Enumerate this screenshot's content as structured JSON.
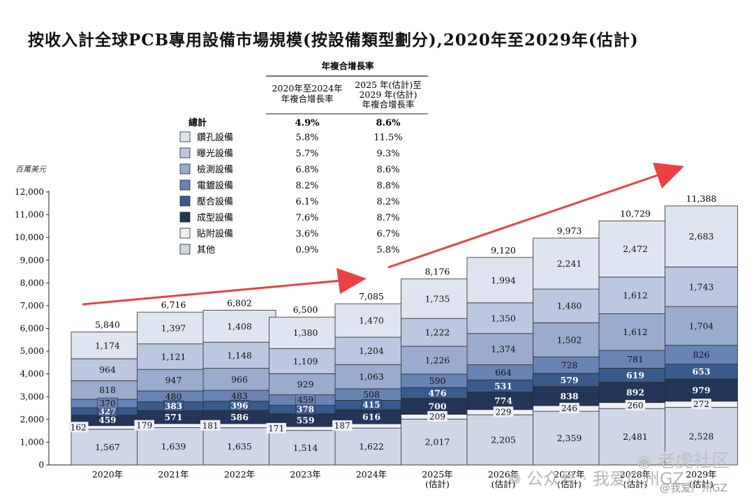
{
  "title": "按收入計全球PCB專用設備市場規模(按設備類型劃分),2020年至2029年(估計)",
  "cagr_table": {
    "group_header": "年複合增長率",
    "col1_header": "2020年至2024年年複合增長率",
    "col1_lines": [
      "2020年至2024年",
      "年複合增長率"
    ],
    "col2_header": "2025年(估計)至2029年(估計)年複合增長率",
    "col2_lines": [
      "2025 年(估計)至",
      "2029 年(估計)",
      "年複合增長率"
    ],
    "total": {
      "label": "總計",
      "cagr_2020_2024": "4.9%",
      "cagr_2025_2029": "8.6%"
    }
  },
  "watermark": {
    "text1": "公众号 · 我爱广州GZ",
    "text2": "老虎社区",
    "text3": "@我爱广州GZ"
  },
  "chart_data": {
    "type": "bar",
    "stacked": true,
    "ylabel": "百萬美元",
    "ylim": [
      0,
      12000
    ],
    "yticks": [
      "0",
      "1,000",
      "2,000",
      "3,000",
      "4,000",
      "5,000",
      "6,000",
      "7,000",
      "8,000",
      "9,000",
      "10,000",
      "11,000",
      "12,000"
    ],
    "categories": [
      "2020年",
      "2021年",
      "2022年",
      "2023年",
      "2024年",
      "2025年\n(估計)",
      "2026年\n(估計)",
      "2027年\n(估計)",
      "2028年\n(估計)",
      "2029年\n(估計)"
    ],
    "totals": [
      5840,
      6716,
      6802,
      6500,
      7085,
      8176,
      9120,
      9973,
      10729,
      11388
    ],
    "total_labels": [
      "5,840",
      "6,716",
      "6,802",
      "6,500",
      "7,085",
      "8,176",
      "9,120",
      "9,973",
      "10,729",
      "11,388"
    ],
    "series": [
      {
        "name": "其他",
        "color": "#cfd6e6",
        "cagr_2020_2024": "0.9%",
        "cagr_2025_2029": "5.8%",
        "values": [
          1567,
          1639,
          1635,
          1514,
          1622,
          2017,
          2205,
          2359,
          2481,
          2528
        ],
        "labels": [
          "1,567",
          "1,639",
          "1,635",
          "1,514",
          "1,622",
          "2,017",
          "2,205",
          "2,359",
          "2,481",
          "2,528"
        ]
      },
      {
        "name": "貼附設備",
        "color": "#eef1f7",
        "cagr_2020_2024": "3.6%",
        "cagr_2025_2029": "6.7%",
        "values": [
          162,
          179,
          181,
          171,
          187,
          209,
          229,
          246,
          260,
          272
        ],
        "labels": [
          "162",
          "179",
          "181",
          "171",
          "187",
          "209",
          "229",
          "246",
          "260",
          "272"
        ]
      },
      {
        "name": "成型設備",
        "color": "#233657",
        "cagr_2020_2024": "7.6%",
        "cagr_2025_2029": "8.7%",
        "values": [
          459,
          571,
          586,
          559,
          616,
          700,
          774,
          838,
          892,
          979
        ],
        "labels": [
          "459",
          "571",
          "586",
          "559",
          "616",
          "700",
          "774",
          "838",
          "892",
          "979"
        ]
      },
      {
        "name": "壓合設備",
        "color": "#3a5a8c",
        "cagr_2020_2024": "6.1%",
        "cagr_2025_2029": "8.2%",
        "values": [
          327,
          383,
          396,
          378,
          415,
          476,
          531,
          579,
          619,
          653
        ],
        "labels": [
          "327",
          "383",
          "396",
          "378",
          "415",
          "476",
          "531",
          "579",
          "619",
          "653"
        ]
      },
      {
        "name": "電鍍設備",
        "color": "#6a83b5",
        "cagr_2020_2024": "8.2%",
        "cagr_2025_2029": "8.8%",
        "values": [
          370,
          480,
          483,
          459,
          508,
          590,
          664,
          728,
          781,
          826
        ],
        "labels": [
          "370",
          "480",
          "483",
          "459",
          "508",
          "590",
          "664",
          "728",
          "781",
          "826"
        ]
      },
      {
        "name": "檢測設備",
        "color": "#9aaccd",
        "cagr_2020_2024": "6.8%",
        "cagr_2025_2029": "8.6%",
        "values": [
          818,
          947,
          966,
          929,
          1063,
          1226,
          1374,
          1502,
          1612,
          1704
        ],
        "labels": [
          "818",
          "947",
          "966",
          "929",
          "1,063",
          "1,226",
          "1,374",
          "1,502",
          "1,612",
          "1,704"
        ]
      },
      {
        "name": "曝光設備",
        "color": "#bcc8df",
        "cagr_2020_2024": "5.7%",
        "cagr_2025_2029": "9.3%",
        "values": [
          964,
          1121,
          1148,
          1109,
          1204,
          1222,
          1350,
          1480,
          1612,
          1743
        ],
        "labels": [
          "964",
          "1,121",
          "1,148",
          "1,109",
          "1,204",
          "1,222",
          "1,350",
          "1,480",
          "1,612",
          "1,743"
        ]
      },
      {
        "name": "鑽孔設備",
        "color": "#dfe5f0",
        "cagr_2020_2024": "5.8%",
        "cagr_2025_2029": "11.5%",
        "values": [
          1174,
          1397,
          1408,
          1380,
          1470,
          1735,
          1994,
          2241,
          2472,
          2683
        ],
        "labels": [
          "1,174",
          "1,397",
          "1,408",
          "1,380",
          "1,470",
          "1,735",
          "1,994",
          "2,241",
          "2,472",
          "2,683"
        ]
      }
    ],
    "legend_order": [
      "鑽孔設備",
      "曝光設備",
      "檢測設備",
      "電鍍設備",
      "壓合設備",
      "成型設備",
      "貼附設備",
      "其他"
    ]
  }
}
